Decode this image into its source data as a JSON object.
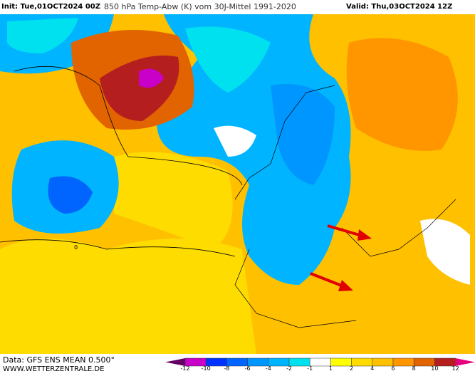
{
  "header": {
    "init": "Init: Tue,01OCT2024 00Z",
    "title": "850 hPa Temp-Abw (K) vom 30J-Mittel 1991-2020",
    "valid": "Valid: Thu,03OCT2024 12Z"
  },
  "footer": {
    "data": "Data: GFS ENS MEAN 0.500°",
    "site": "WWW.WETTERZENTRALE.DE"
  },
  "legend": {
    "labels": [
      "-12",
      "-10",
      "-8",
      "-6",
      "-4",
      "-2",
      "-1",
      "1",
      "2",
      "4",
      "6",
      "8",
      "10",
      "12"
    ],
    "colors": [
      "#c800c8",
      "#0032ff",
      "#0064ff",
      "#0096ff",
      "#00b4ff",
      "#00e1f0",
      "#ffffff",
      "#ffff00",
      "#ffdc00",
      "#ffc000",
      "#ff9600",
      "#e16400",
      "#b41e1e"
    ],
    "low_color": "#640064",
    "high_color": "#e6007d"
  },
  "map": {
    "contour_label": "0"
  }
}
